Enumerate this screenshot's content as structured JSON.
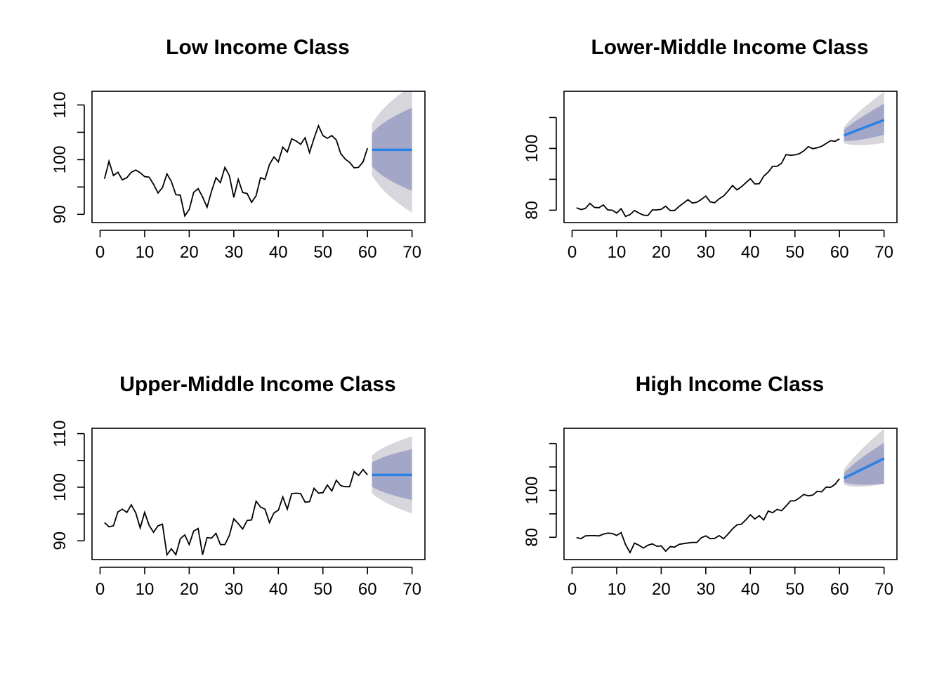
{
  "chart_data": [
    {
      "type": "line",
      "title": "Low Income Class",
      "xlabel": "",
      "ylabel": "",
      "xlim": [
        0,
        70
      ],
      "ylim": [
        88.5,
        112.5
      ],
      "x_ticks": [
        0,
        10,
        20,
        30,
        40,
        50,
        60,
        70
      ],
      "x_tick_labels": [
        "0",
        "10",
        "20",
        "30",
        "40",
        "50",
        "60",
        "70"
      ],
      "y_ticks": [
        90,
        95,
        100,
        105,
        110
      ],
      "y_tick_labels": [
        "90",
        "",
        "100",
        "",
        "110"
      ],
      "grid": false,
      "x": [
        1,
        2,
        3,
        4,
        5,
        6,
        7,
        8,
        9,
        10,
        11,
        12,
        13,
        14,
        15,
        16,
        17,
        18,
        19,
        20,
        21,
        22,
        23,
        24,
        25,
        26,
        27,
        28,
        29,
        30,
        31,
        32,
        33,
        34,
        35,
        36,
        37,
        38,
        39,
        40,
        41,
        42,
        43,
        44,
        45,
        46,
        47,
        48,
        49,
        50,
        51,
        52,
        53,
        54,
        55,
        56,
        57,
        58,
        59,
        60
      ],
      "observed": [
        96.5,
        99.7,
        97.1,
        97.7,
        96.3,
        96.7,
        97.7,
        98.1,
        97.6,
        96.9,
        96.8,
        95.5,
        93.9,
        94.9,
        97.4,
        96.0,
        93.6,
        93.5,
        89.7,
        90.9,
        94.0,
        94.7,
        93.2,
        91.3,
        94.2,
        96.7,
        95.8,
        98.6,
        97.1,
        93.1,
        96.4,
        94.0,
        93.8,
        92.2,
        93.4,
        96.7,
        96.4,
        99.1,
        100.5,
        99.6,
        102.3,
        101.4,
        103.8,
        103.4,
        102.8,
        104.0,
        101.3,
        103.9,
        106.2,
        104.4,
        103.9,
        104.4,
        103.6,
        101.1,
        100.1,
        99.5,
        98.5,
        98.6,
        99.6,
        102.1
      ],
      "forecast_x": [
        61,
        70
      ],
      "forecast_mean": [
        101.8,
        101.8
      ],
      "interval_80": {
        "lower": [
          98.8,
          94.3
        ],
        "upper": [
          104.8,
          109.5
        ]
      },
      "interval_95": {
        "lower": [
          97.2,
          90.3
        ],
        "upper": [
          106.5,
          113.5
        ]
      },
      "colors": {
        "observed": "#000000",
        "forecast": "#2a82e4",
        "pi80": "#a4a6c8",
        "pi95": "#d6d6dc"
      }
    },
    {
      "type": "line",
      "title": "Lower-Middle Income Class",
      "xlabel": "",
      "ylabel": "",
      "xlim": [
        0,
        70
      ],
      "ylim": [
        76,
        118.5
      ],
      "x_ticks": [
        0,
        10,
        20,
        30,
        40,
        50,
        60,
        70
      ],
      "x_tick_labels": [
        "0",
        "10",
        "20",
        "30",
        "40",
        "50",
        "60",
        "70"
      ],
      "y_ticks": [
        80,
        90,
        100,
        110
      ],
      "y_tick_labels": [
        "80",
        "",
        "100",
        ""
      ],
      "grid": false,
      "x": [
        1,
        2,
        3,
        4,
        5,
        6,
        7,
        8,
        9,
        10,
        11,
        12,
        13,
        14,
        15,
        16,
        17,
        18,
        19,
        20,
        21,
        22,
        23,
        24,
        25,
        26,
        27,
        28,
        29,
        30,
        31,
        32,
        33,
        34,
        35,
        36,
        37,
        38,
        39,
        40,
        41,
        42,
        43,
        44,
        45,
        46,
        47,
        48,
        49,
        50,
        51,
        52,
        53,
        54,
        55,
        56,
        57,
        58,
        59,
        60
      ],
      "observed": [
        80.8,
        80.2,
        80.6,
        82.2,
        80.9,
        80.8,
        81.7,
        80.1,
        80.0,
        79.1,
        80.5,
        78.0,
        78.6,
        79.9,
        79.1,
        78.4,
        78.3,
        80.1,
        80.1,
        80.3,
        81.3,
        79.9,
        79.9,
        81.2,
        82.3,
        83.4,
        82.3,
        82.6,
        83.5,
        84.6,
        82.7,
        82.4,
        83.7,
        84.6,
        86.2,
        88.0,
        86.6,
        87.6,
        88.9,
        90.2,
        88.5,
        88.6,
        91.0,
        92.3,
        94.2,
        94.2,
        95.2,
        98.0,
        97.8,
        97.9,
        98.3,
        99.2,
        100.6,
        99.9,
        100.2,
        100.7,
        101.6,
        102.5,
        102.3,
        103.1
      ],
      "forecast_x": [
        61,
        70
      ],
      "forecast_mean": [
        104.2,
        109.2
      ],
      "interval_80": {
        "lower": [
          102.4,
          104.4
        ],
        "upper": [
          106.0,
          114.5
        ]
      },
      "interval_95": {
        "lower": [
          101.7,
          101.8
        ],
        "upper": [
          106.9,
          118.3
        ]
      },
      "colors": {
        "observed": "#000000",
        "forecast": "#2a82e4",
        "pi80": "#a4a6c8",
        "pi95": "#d6d6dc"
      }
    },
    {
      "type": "line",
      "title": "Upper-Middle Income Class",
      "xlabel": "",
      "ylabel": "",
      "xlim": [
        0,
        70
      ],
      "ylim": [
        86.5,
        111
      ],
      "x_ticks": [
        0,
        10,
        20,
        30,
        40,
        50,
        60,
        70
      ],
      "x_tick_labels": [
        "0",
        "10",
        "20",
        "30",
        "40",
        "50",
        "60",
        "70"
      ],
      "y_ticks": [
        90,
        95,
        100,
        105,
        110
      ],
      "y_tick_labels": [
        "90",
        "",
        "100",
        "",
        "110"
      ],
      "grid": false,
      "x": [
        1,
        2,
        3,
        4,
        5,
        6,
        7,
        8,
        9,
        10,
        11,
        12,
        13,
        14,
        15,
        16,
        17,
        18,
        19,
        20,
        21,
        22,
        23,
        24,
        25,
        26,
        27,
        28,
        29,
        30,
        31,
        32,
        33,
        34,
        35,
        36,
        37,
        38,
        39,
        40,
        41,
        42,
        43,
        44,
        45,
        46,
        47,
        48,
        49,
        50,
        51,
        52,
        53,
        54,
        55,
        56,
        57,
        58,
        59,
        60
      ],
      "observed": [
        93.4,
        92.6,
        92.8,
        95.4,
        95.9,
        95.3,
        96.7,
        95.2,
        92.4,
        95.3,
        92.9,
        91.6,
        92.8,
        93.1,
        87.4,
        88.5,
        87.4,
        90.4,
        91.1,
        89.3,
        91.8,
        92.3,
        87.4,
        90.6,
        90.5,
        91.4,
        89.3,
        89.3,
        91.0,
        94.1,
        93.2,
        92.2,
        93.8,
        93.9,
        97.4,
        96.3,
        95.9,
        93.4,
        95.2,
        95.7,
        98.2,
        95.9,
        98.8,
        98.9,
        98.8,
        97.2,
        97.3,
        99.8,
        98.9,
        99.0,
        100.4,
        99.3,
        101.3,
        100.3,
        100.1,
        100.1,
        102.9,
        102.2,
        103.3,
        102.3
      ],
      "forecast_x": [
        61,
        70
      ],
      "forecast_mean": [
        102.3,
        102.3
      ],
      "interval_80": {
        "lower": [
          100.1,
          97.6
        ],
        "upper": [
          104.6,
          107.1
        ]
      },
      "interval_95": {
        "lower": [
          98.9,
          95.1
        ],
        "upper": [
          105.9,
          109.5
        ]
      },
      "colors": {
        "observed": "#000000",
        "forecast": "#2a82e4",
        "pi80": "#a4a6c8",
        "pi95": "#d6d6dc"
      }
    },
    {
      "type": "line",
      "title": "High Income Class",
      "xlabel": "",
      "ylabel": "",
      "xlim": [
        0,
        70
      ],
      "ylim": [
        70.5,
        126.5
      ],
      "x_ticks": [
        0,
        10,
        20,
        30,
        40,
        50,
        60,
        70
      ],
      "x_tick_labels": [
        "0",
        "10",
        "20",
        "30",
        "40",
        "50",
        "60",
        "70"
      ],
      "y_ticks": [
        80,
        90,
        100,
        110,
        120
      ],
      "y_tick_labels": [
        "80",
        "",
        "100",
        "",
        ""
      ],
      "grid": false,
      "x": [
        1,
        2,
        3,
        4,
        5,
        6,
        7,
        8,
        9,
        10,
        11,
        12,
        13,
        14,
        15,
        16,
        17,
        18,
        19,
        20,
        21,
        22,
        23,
        24,
        25,
        26,
        27,
        28,
        29,
        30,
        31,
        32,
        33,
        34,
        35,
        36,
        37,
        38,
        39,
        40,
        41,
        42,
        43,
        44,
        45,
        46,
        47,
        48,
        49,
        50,
        51,
        52,
        53,
        54,
        55,
        56,
        57,
        58,
        59,
        60
      ],
      "observed": [
        79.9,
        79.4,
        80.6,
        80.7,
        80.7,
        80.6,
        81.3,
        81.8,
        81.6,
        80.8,
        82.0,
        76.9,
        73.5,
        77.5,
        76.6,
        75.4,
        76.6,
        77.2,
        76.2,
        76.3,
        74.1,
        76.0,
        75.8,
        77.0,
        77.3,
        77.6,
        77.8,
        77.8,
        79.8,
        80.6,
        79.4,
        79.5,
        80.7,
        79.4,
        81.4,
        83.6,
        85.3,
        85.6,
        87.5,
        89.6,
        87.8,
        89.2,
        87.4,
        91.2,
        90.5,
        91.9,
        91.3,
        93.3,
        95.5,
        95.6,
        96.8,
        98.3,
        97.7,
        98.0,
        99.6,
        99.4,
        101.4,
        101.3,
        102.6,
        105.0
      ],
      "forecast_x": [
        61,
        70
      ],
      "forecast_mean": [
        105.2,
        113.6
      ],
      "interval_80": {
        "lower": [
          103.5,
          102.8
        ],
        "upper": [
          107.3,
          120.3
        ]
      },
      "interval_95": {
        "lower": [
          102.5,
          102.8
        ],
        "upper": [
          108.8,
          126.3
        ]
      },
      "colors": {
        "observed": "#000000",
        "forecast": "#2a82e4",
        "pi80": "#a4a6c8",
        "pi95": "#d6d6dc"
      }
    }
  ]
}
